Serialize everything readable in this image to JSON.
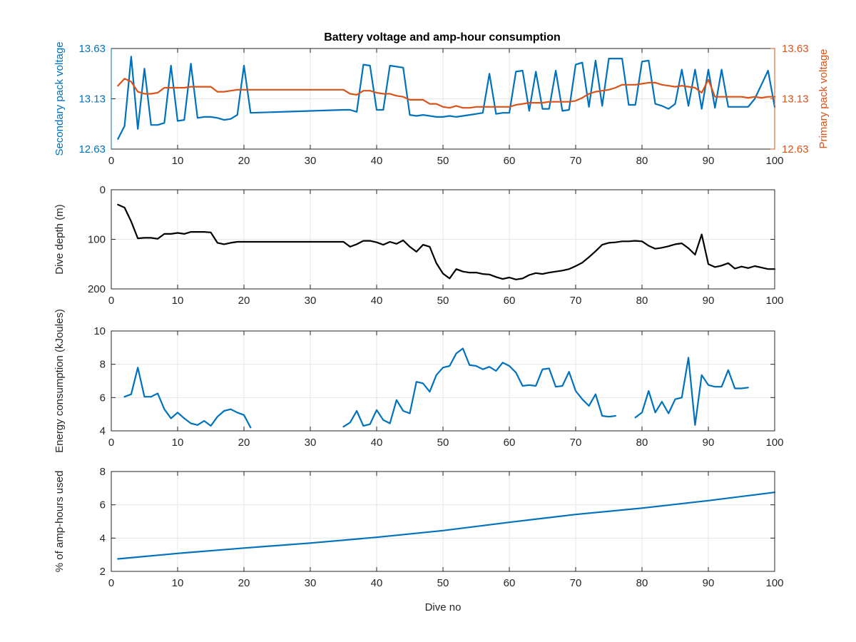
{
  "colors": {
    "blue": "#0072BD",
    "orange": "#D95319",
    "black": "#000000",
    "axis": "#262626",
    "grid": "#e6e6e6"
  },
  "figure_title": "Battery voltage and amp-hour consumption",
  "chart_data": [
    {
      "type": "line",
      "id": "voltage",
      "title": "Battery voltage and amp-hour consumption",
      "xlabel": "",
      "ylabel": "Secondary pack voltage",
      "ylabel_right": "Primary pack voltage",
      "xlim": [
        0,
        100
      ],
      "ylim": [
        12.63,
        13.63
      ],
      "ylim_right": [
        12.63,
        13.63
      ],
      "xticks": [
        0,
        10,
        20,
        30,
        40,
        50,
        60,
        70,
        80,
        90,
        100
      ],
      "yticks": [
        12.63,
        13.13,
        13.63
      ],
      "ytick_labels": [
        "12.63",
        "13.13",
        "13.63"
      ],
      "yticks_right": [
        12.63,
        13.13,
        13.63
      ],
      "ytick_labels_right": [
        "12.63",
        "13.13",
        "13.63"
      ],
      "grid": true,
      "series": [
        {
          "axis": "left",
          "color": "#0072BD",
          "x": [
            1,
            2,
            3,
            4,
            5,
            6,
            7,
            8,
            9,
            10,
            11,
            12,
            13,
            14,
            15,
            16,
            17,
            18,
            19,
            20,
            21,
            35,
            36,
            37,
            38,
            39,
            40,
            41,
            42,
            43,
            44,
            45,
            46,
            47,
            48,
            49,
            50,
            51,
            52,
            53,
            54,
            55,
            56,
            57,
            58,
            59,
            60,
            61,
            62,
            63,
            64,
            65,
            66,
            67,
            68,
            69,
            70,
            71,
            72,
            73,
            74,
            75,
            76,
            77,
            78,
            79,
            80,
            81,
            82,
            83,
            84,
            85,
            86,
            87,
            88,
            89,
            90,
            91,
            92,
            93,
            94,
            95,
            96,
            97,
            98,
            99,
            100
          ],
          "y": [
            12.73,
            12.86,
            13.55,
            12.83,
            13.43,
            12.87,
            12.87,
            12.89,
            13.46,
            12.91,
            12.92,
            13.48,
            12.94,
            12.95,
            12.95,
            12.94,
            12.92,
            12.93,
            12.97,
            13.46,
            12.99,
            13.02,
            13.02,
            13.0,
            13.47,
            13.46,
            13.02,
            13.02,
            13.46,
            13.45,
            13.44,
            12.97,
            12.96,
            12.97,
            12.96,
            12.95,
            12.95,
            12.96,
            12.95,
            12.96,
            12.97,
            12.98,
            12.99,
            13.38,
            12.98,
            12.99,
            12.99,
            13.4,
            13.41,
            13.01,
            13.4,
            13.03,
            13.03,
            13.41,
            13.01,
            13.02,
            13.47,
            13.49,
            13.05,
            13.51,
            13.06,
            13.53,
            13.53,
            13.53,
            13.07,
            13.07,
            13.5,
            13.51,
            13.08,
            13.06,
            13.03,
            13.08,
            13.42,
            13.06,
            13.42,
            13.03,
            13.42,
            13.04,
            13.42,
            13.05,
            13.05,
            13.05,
            13.05,
            13.13,
            13.27,
            13.41,
            13.05
          ]
        },
        {
          "axis": "right",
          "color": "#D95319",
          "x": [
            1,
            2,
            3,
            4,
            5,
            6,
            7,
            8,
            9,
            10,
            11,
            12,
            13,
            14,
            15,
            16,
            17,
            18,
            19,
            20,
            21,
            22,
            23,
            24,
            25,
            26,
            27,
            28,
            29,
            30,
            31,
            32,
            33,
            34,
            35,
            36,
            37,
            38,
            39,
            40,
            41,
            42,
            43,
            44,
            45,
            46,
            47,
            48,
            49,
            50,
            51,
            52,
            53,
            54,
            55,
            56,
            57,
            58,
            59,
            60,
            61,
            62,
            63,
            64,
            65,
            66,
            67,
            68,
            69,
            70,
            71,
            72,
            73,
            74,
            75,
            76,
            77,
            78,
            79,
            80,
            81,
            82,
            83,
            84,
            85,
            86,
            87,
            88,
            89,
            90,
            91,
            92,
            93,
            94,
            95,
            96,
            97,
            98,
            99,
            100
          ],
          "y": [
            13.26,
            13.33,
            13.3,
            13.2,
            13.18,
            13.18,
            13.19,
            13.24,
            13.24,
            13.24,
            13.24,
            13.25,
            13.25,
            13.25,
            13.25,
            13.2,
            13.2,
            13.21,
            13.22,
            13.22,
            13.22,
            13.22,
            13.22,
            13.22,
            13.22,
            13.22,
            13.22,
            13.22,
            13.22,
            13.22,
            13.22,
            13.22,
            13.22,
            13.22,
            13.22,
            13.18,
            13.17,
            13.21,
            13.21,
            13.19,
            13.18,
            13.18,
            13.16,
            13.15,
            13.12,
            13.12,
            13.12,
            13.08,
            13.08,
            13.05,
            13.04,
            13.06,
            13.04,
            13.04,
            13.05,
            13.05,
            13.05,
            13.05,
            13.05,
            13.05,
            13.07,
            13.08,
            13.09,
            13.09,
            13.09,
            13.1,
            13.1,
            13.1,
            13.1,
            13.11,
            13.14,
            13.18,
            13.2,
            13.21,
            13.22,
            13.24,
            13.27,
            13.27,
            13.27,
            13.28,
            13.29,
            13.29,
            13.27,
            13.26,
            13.25,
            13.26,
            13.25,
            13.24,
            13.19,
            13.32,
            13.15,
            13.15,
            13.15,
            13.15,
            13.15,
            13.14,
            13.15,
            13.14,
            13.15,
            13.15
          ]
        }
      ]
    },
    {
      "type": "line",
      "id": "depth",
      "title": "",
      "xlabel": "",
      "ylabel": "Dive depth (m)",
      "xlim": [
        0,
        100
      ],
      "ylim": [
        0,
        200
      ],
      "y_reversed": true,
      "xticks": [
        0,
        10,
        20,
        30,
        40,
        50,
        60,
        70,
        80,
        90,
        100
      ],
      "yticks": [
        0,
        100,
        200
      ],
      "ytick_labels": [
        "0",
        "100",
        "200"
      ],
      "grid": true,
      "series": [
        {
          "axis": "left",
          "color": "#000000",
          "x": [
            1,
            2,
            3,
            4,
            5,
            6,
            7,
            8,
            9,
            10,
            11,
            12,
            13,
            14,
            15,
            16,
            17,
            18,
            19,
            20,
            21,
            22,
            23,
            24,
            25,
            26,
            27,
            28,
            29,
            30,
            31,
            32,
            33,
            34,
            35,
            36,
            37,
            38,
            39,
            40,
            41,
            42,
            43,
            44,
            45,
            46,
            47,
            48,
            49,
            50,
            51,
            52,
            53,
            54,
            55,
            56,
            57,
            58,
            59,
            60,
            61,
            62,
            63,
            64,
            65,
            66,
            67,
            68,
            69,
            70,
            71,
            72,
            73,
            74,
            75,
            76,
            77,
            78,
            79,
            80,
            81,
            82,
            83,
            84,
            85,
            86,
            87,
            88,
            89,
            90,
            91,
            92,
            93,
            94,
            95,
            96,
            97,
            98,
            99,
            100
          ],
          "y": [
            30,
            36,
            64,
            98,
            97,
            97,
            99,
            89,
            89,
            87,
            89,
            85,
            85,
            85,
            86,
            107,
            110,
            107,
            105,
            105,
            105,
            105,
            105,
            105,
            105,
            105,
            105,
            105,
            105,
            105,
            105,
            105,
            105,
            105,
            105,
            115,
            110,
            103,
            103,
            106,
            111,
            105,
            109,
            102,
            115,
            125,
            111,
            115,
            148,
            169,
            179,
            160,
            165,
            167,
            167,
            170,
            171,
            176,
            180,
            177,
            181,
            179,
            172,
            168,
            170,
            167,
            165,
            163,
            160,
            154,
            147,
            136,
            124,
            111,
            107,
            106,
            104,
            104,
            103,
            104,
            113,
            119,
            117,
            114,
            110,
            108,
            118,
            131,
            90,
            150,
            156,
            153,
            148,
            159,
            155,
            158,
            154,
            157,
            160,
            160
          ]
        }
      ]
    },
    {
      "type": "line",
      "id": "energy",
      "title": "",
      "xlabel": "",
      "ylabel": "Energy consumption (kJoules)",
      "xlim": [
        0,
        100
      ],
      "ylim": [
        4,
        10
      ],
      "xticks": [
        0,
        10,
        20,
        30,
        40,
        50,
        60,
        70,
        80,
        90,
        100
      ],
      "yticks": [
        4,
        6,
        8,
        10
      ],
      "ytick_labels": [
        "4",
        "6",
        "8",
        "10"
      ],
      "grid": true,
      "series": [
        {
          "axis": "left",
          "color": "#0072BD",
          "x": [
            2,
            3,
            4,
            5,
            6,
            7,
            8,
            9,
            10,
            11,
            12,
            13,
            14,
            15,
            16,
            17,
            18,
            19,
            20,
            21,
            null,
            35,
            36,
            37,
            38,
            39,
            40,
            41,
            42,
            43,
            44,
            45,
            46,
            47,
            48,
            49,
            50,
            51,
            52,
            53,
            54,
            55,
            56,
            57,
            58,
            59,
            60,
            61,
            62,
            63,
            64,
            65,
            66,
            67,
            68,
            69,
            70,
            71,
            72,
            73,
            74,
            75,
            76,
            null,
            79,
            80,
            81,
            82,
            83,
            84,
            85,
            86,
            87,
            88,
            89,
            90,
            91,
            92,
            93,
            94,
            95,
            96
          ],
          "y": [
            6.05,
            6.2,
            7.8,
            6.05,
            6.05,
            6.25,
            5.3,
            4.75,
            5.1,
            4.75,
            4.45,
            4.35,
            4.6,
            4.3,
            4.85,
            5.2,
            5.3,
            5.1,
            4.95,
            4.2,
            null,
            4.25,
            4.5,
            5.2,
            4.3,
            4.4,
            5.25,
            4.65,
            4.45,
            5.85,
            5.2,
            5.05,
            6.95,
            6.85,
            6.35,
            7.35,
            7.8,
            7.9,
            8.65,
            8.95,
            7.95,
            7.9,
            7.7,
            7.85,
            7.6,
            8.1,
            7.9,
            7.5,
            6.7,
            6.75,
            6.7,
            7.7,
            7.75,
            6.65,
            6.7,
            7.55,
            6.4,
            5.9,
            5.5,
            6.2,
            4.9,
            4.85,
            4.9,
            null,
            4.8,
            5.1,
            6.4,
            5.1,
            5.75,
            5.05,
            5.9,
            6.0,
            8.4,
            4.35,
            7.35,
            6.75,
            6.65,
            6.65,
            7.65,
            6.55,
            6.55,
            6.6
          ]
        }
      ]
    },
    {
      "type": "line",
      "id": "amphours",
      "title": "",
      "xlabel": "Dive no",
      "ylabel": "% of amp-hours used",
      "xlim": [
        0,
        100
      ],
      "ylim": [
        2,
        8
      ],
      "xticks": [
        0,
        10,
        20,
        30,
        40,
        50,
        60,
        70,
        80,
        90,
        100
      ],
      "yticks": [
        2,
        4,
        6,
        8
      ],
      "ytick_labels": [
        "2",
        "4",
        "6",
        "8"
      ],
      "grid": true,
      "series": [
        {
          "axis": "left",
          "color": "#0072BD",
          "x": [
            1,
            10,
            20,
            30,
            40,
            50,
            60,
            70,
            80,
            90,
            100
          ],
          "y": [
            2.75,
            3.08,
            3.4,
            3.7,
            4.05,
            4.45,
            4.95,
            5.42,
            5.8,
            6.25,
            6.75
          ]
        }
      ]
    }
  ]
}
